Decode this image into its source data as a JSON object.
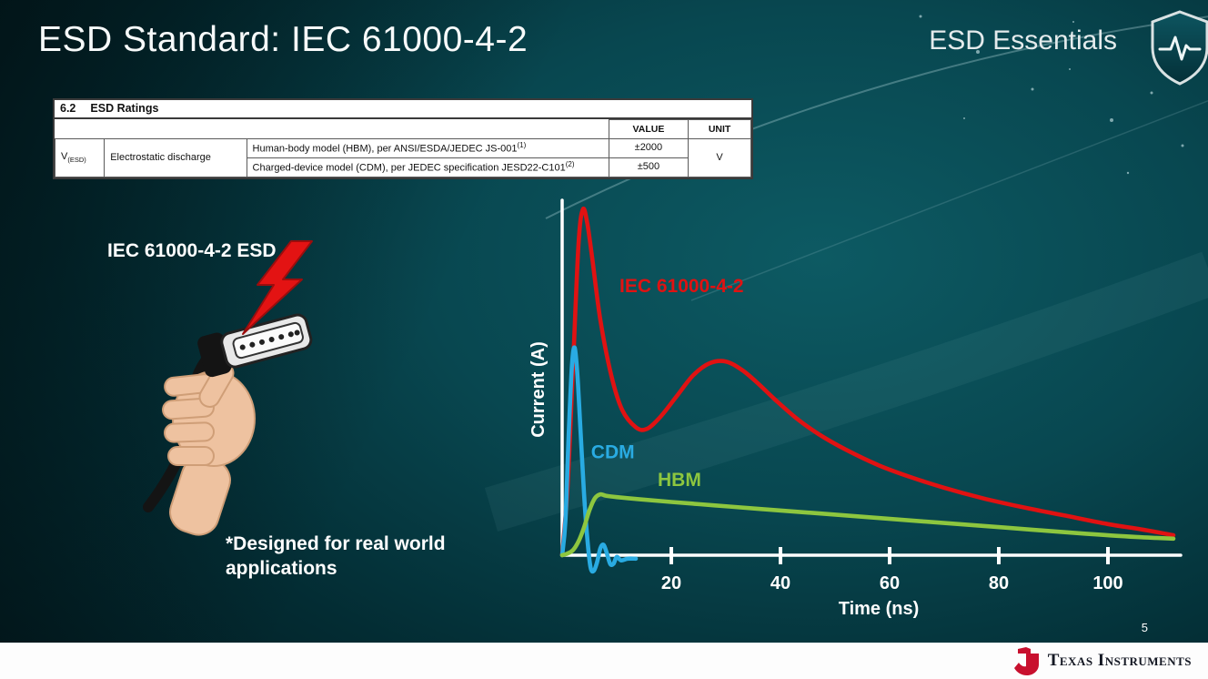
{
  "slide": {
    "title": "ESD Standard: IEC 61000-4-2",
    "brand": "ESD Essentials",
    "left_caption": "IEC 61000-4-2 ESD",
    "footnote": "*Designed for real world applications",
    "page_number": "5",
    "footer_brand": "Texas Instruments"
  },
  "colors": {
    "iec_red": "#e01212",
    "cdm_blue": "#29abe2",
    "hbm_green": "#8dc63f",
    "ti_red": "#c8102e"
  },
  "ratings_table": {
    "section_number": "6.2",
    "section_title": "ESD Ratings",
    "value_header": "VALUE",
    "unit_header": "UNIT",
    "param_symbol": "V",
    "param_symbol_sub": "(ESD)",
    "param_name": "Electrostatic discharge",
    "rows": [
      {
        "description": "Human-body model (HBM), per ANSI/ESDA/JEDEC JS-001",
        "description_sup": "(1)",
        "value": "±2000"
      },
      {
        "description": "Charged-device model (CDM), per JEDEC specification JESD22-C101",
        "description_sup": "(2)",
        "value": "±500"
      }
    ],
    "unit": "V"
  },
  "chart_data": {
    "type": "line",
    "title": "",
    "xlabel": "Time (ns)",
    "ylabel": "Current (A)",
    "xlim": [
      0,
      112
    ],
    "ylim": [
      -5,
      103
    ],
    "xticks": [
      20,
      40,
      60,
      80,
      100
    ],
    "yticks": [],
    "grid": false,
    "legend": "inline-labels",
    "series": [
      {
        "name": "IEC 61000-4-2",
        "color": "#e01212",
        "label_at": [
          10.5,
          76
        ],
        "x": [
          0,
          1,
          2,
          3,
          3.8,
          4.6,
          5.5,
          7,
          9,
          11,
          13.5,
          15.5,
          18,
          21,
          24,
          27,
          30,
          33,
          36,
          39,
          43,
          47,
          52,
          58,
          64,
          70,
          77,
          84,
          92,
          100,
          106,
          112
        ],
        "y": [
          0,
          20,
          55,
          90,
          100,
          96,
          86,
          68,
          52,
          42,
          37,
          36.5,
          40,
          46,
          52,
          55.5,
          56,
          53.5,
          49.5,
          45,
          39.5,
          35,
          30.5,
          26,
          22.5,
          19.5,
          16.5,
          14,
          11.5,
          9,
          7.5,
          5.8
        ]
      },
      {
        "name": "CDM",
        "color": "#29abe2",
        "label_at": [
          5.3,
          28
        ],
        "x": [
          0,
          0.6,
          1.2,
          1.8,
          2.3,
          2.8,
          3.4,
          4.0,
          4.6,
          5.2,
          5.8,
          6.4,
          7.0,
          7.6,
          8.2,
          8.8,
          9.4,
          10,
          10.8,
          12,
          13.5
        ],
        "y": [
          0,
          10,
          35,
          55,
          60,
          52,
          35,
          18,
          5,
          -3.5,
          -4.5,
          -2,
          2,
          3,
          0.5,
          -2.5,
          -2.5,
          -0.5,
          -1.5,
          -1,
          -1
        ]
      },
      {
        "name": "HBM",
        "color": "#8dc63f",
        "label_at": [
          17.5,
          20
        ],
        "x": [
          0,
          1,
          2,
          3,
          4,
          5,
          6,
          7,
          8,
          10,
          14,
          20,
          28,
          36,
          46,
          56,
          66,
          76,
          86,
          96,
          106,
          112
        ],
        "y": [
          0,
          0.5,
          1.5,
          4,
          8,
          13,
          16.5,
          17.6,
          17.2,
          16.8,
          16.2,
          15.4,
          14.4,
          13.4,
          12.2,
          11,
          9.8,
          8.6,
          7.4,
          6.2,
          5.2,
          4.8
        ]
      }
    ]
  }
}
